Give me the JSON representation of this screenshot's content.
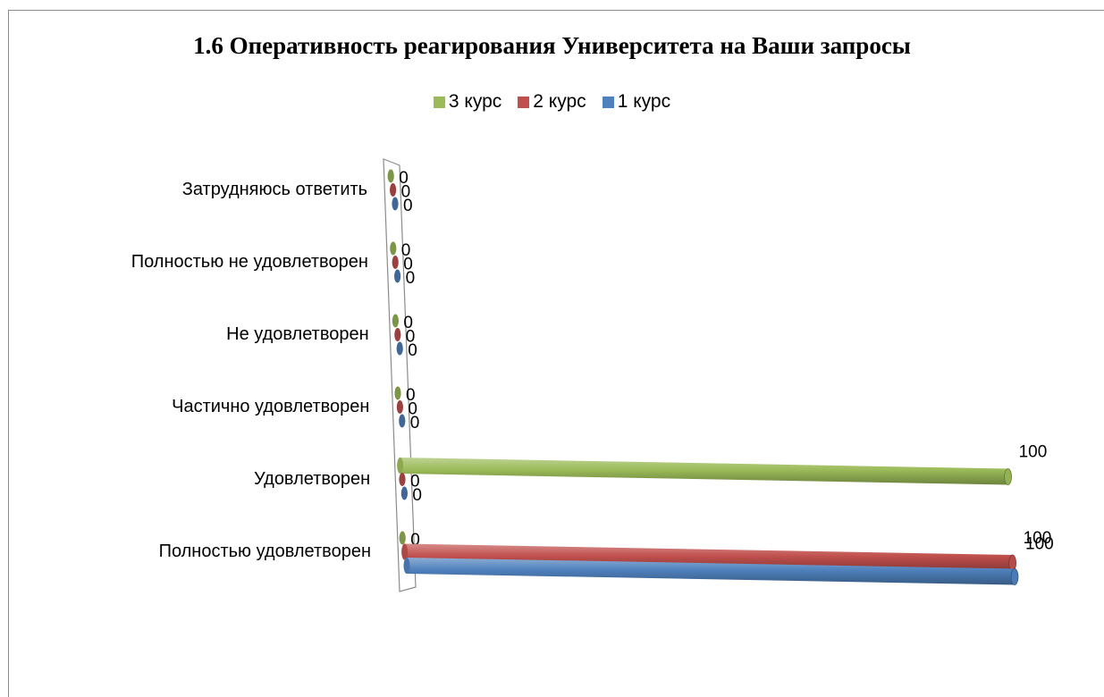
{
  "chart_data": {
    "type": "bar",
    "orientation": "horizontal",
    "title": "1.6 Оперативность реагирования Университета на Ваши запросы",
    "categories": [
      "Полностью удовлетворен",
      "Удовлетворен",
      "Частично удовлетворен",
      "Не удовлетворен",
      "Полностью не удовлетворен",
      "Затрудняюсь ответить"
    ],
    "series": [
      {
        "name": "3 курс",
        "color": "#9bbb59",
        "values": [
          0,
          100,
          0,
          0,
          0,
          0
        ]
      },
      {
        "name": "2 курс",
        "color": "#c0504d",
        "values": [
          100,
          0,
          0,
          0,
          0,
          0
        ]
      },
      {
        "name": "1 курс",
        "color": "#4f81bd",
        "values": [
          100,
          0,
          0,
          0,
          0,
          0
        ]
      }
    ],
    "xlim": [
      0,
      100
    ],
    "grid": false,
    "legend_position": "top",
    "style": "3d-cylinder"
  }
}
